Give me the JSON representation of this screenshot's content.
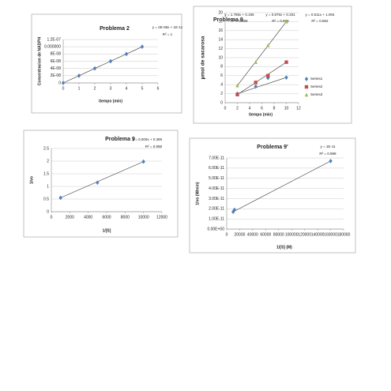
{
  "chart_data": [
    {
      "type": "scatter",
      "title": "Problema 2",
      "x_label": "tiempo (min)",
      "y_label": "Concentracion de NADPH",
      "annotations": [
        "y = 2E-08x + 1E-11",
        "R² = 1"
      ],
      "x": [
        0,
        1,
        2,
        3,
        4,
        5
      ],
      "values": [
        0,
        2e-08,
        4e-08,
        6e-08,
        8e-08,
        1e-07
      ],
      "color": "#4f81bd",
      "trendline": true,
      "xlim": [
        0,
        6
      ],
      "xticks": [
        0,
        1,
        2,
        3,
        4,
        5,
        6
      ],
      "ylim": [
        0,
        1.2e-07
      ],
      "yticks": [
        0,
        {
          "value": 2e-08,
          "label": "2E-08"
        },
        {
          "value": 4e-08,
          "label": "4E-08"
        },
        {
          "value": 6e-08,
          "label": "6E-08"
        },
        {
          "value": 8e-08,
          "label": "8E-08"
        },
        {
          "value": 1e-07,
          "label": "0.000000"
        },
        {
          "value": 1.2e-07,
          "label": "1.2E-07"
        }
      ],
      "grid": true
    },
    {
      "type": "scatter",
      "title": "Problema 9",
      "x_label": "tiempo (min)",
      "y_label": "µmol de sacarosa",
      "annotations": [
        "y = 1.788x + 0.195",
        "R² = 0.999",
        "y = 0.876x + 0.331",
        "R² = 0.999",
        "y = 0.511x + 1.004",
        "R² = 0.862"
      ],
      "x": [
        2,
        5,
        7,
        10
      ],
      "series": [
        {
          "name": "Series1",
          "color": "#4f81bd",
          "marker": "diamond",
          "values": [
            2.0,
            3.6,
            5.5,
            5.6
          ]
        },
        {
          "name": "Series2",
          "color": "#c0504d",
          "marker": "square",
          "values": [
            1.8,
            4.5,
            6.0,
            9.0
          ]
        },
        {
          "name": "Series3",
          "color": "#9bbb59",
          "marker": "triangle",
          "values": [
            3.8,
            9.0,
            12.7,
            18.0
          ]
        }
      ],
      "trendline": true,
      "legend": "right",
      "xlim": [
        0,
        12
      ],
      "xticks": [
        0,
        2,
        4,
        6,
        8,
        10,
        12
      ],
      "ylim": [
        0,
        20
      ],
      "yticks": [
        0,
        2,
        4,
        6,
        8,
        10,
        12,
        14,
        16,
        18,
        20
      ],
      "grid": true
    },
    {
      "type": "scatter",
      "title": "Problema 9",
      "x_label": "1/[S]",
      "y_label": "1/vo",
      "annotations": [
        "y = 0.000x + 0.389",
        "R² = 0.998"
      ],
      "x": [
        1000,
        5000,
        10000
      ],
      "values": [
        0.55,
        1.15,
        1.98
      ],
      "color": "#4f81bd",
      "trendline": true,
      "xlim": [
        0,
        12000
      ],
      "xticks": [
        0,
        2000,
        4000,
        6000,
        8000,
        10000,
        12000
      ],
      "ylim": [
        0,
        2.5
      ],
      "yticks": [
        0,
        0.5,
        1,
        1.5,
        2,
        2.5
      ],
      "grid": true
    },
    {
      "type": "scatter",
      "title": "Problema 9'",
      "x_label": "1/[S] (M)",
      "y_label": "1/vo (M/min)",
      "annotations": [
        "y = 1E-11",
        "R² = 0.999"
      ],
      "x": [
        10000,
        12000,
        160000
      ],
      "values": [
        1.7e-11,
        1.9e-11,
        6.7e-11
      ],
      "color": "#4f81bd",
      "trendline": true,
      "xlim": [
        0,
        180000
      ],
      "xticks": [
        0,
        20000,
        40000,
        60000,
        80000,
        100000,
        120000,
        140000,
        160000,
        180000
      ],
      "ylim": [
        0,
        7e-11
      ],
      "yticks": [
        {
          "value": 0,
          "label": "0.00E+00"
        },
        {
          "value": 1e-11,
          "label": "1.00E-11"
        },
        {
          "value": 2e-11,
          "label": "2.00E-11"
        },
        {
          "value": 3e-11,
          "label": "3.00E-11"
        },
        {
          "value": 4e-11,
          "label": "4.00E-11"
        },
        {
          "value": 5e-11,
          "label": "5.00E-11"
        },
        {
          "value": 6e-11,
          "label": "6.00E-11"
        },
        {
          "value": 7e-11,
          "label": "7.00E-11"
        }
      ],
      "grid": true
    }
  ]
}
